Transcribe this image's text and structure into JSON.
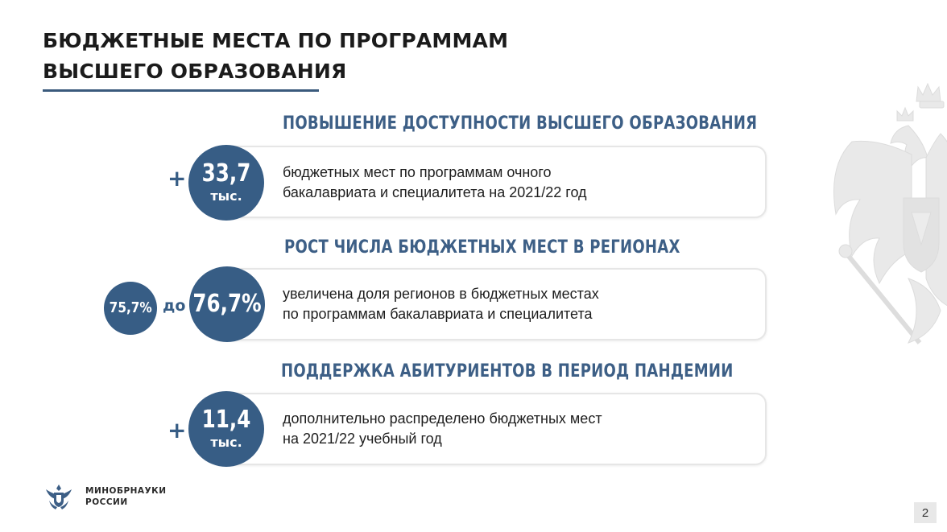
{
  "header": {
    "title_line1": "БЮДЖЕТНЫЕ МЕСТА ПО ПРОГРАММАМ",
    "title_line2": "ВЫСШЕГО ОБРАЗОВАНИЯ"
  },
  "sections": [
    {
      "heading": "ПОВЫШЕНИЕ ДОСТУПНОСТИ ВЫСШЕГО ОБРАЗОВАНИЯ",
      "prefix": "+",
      "value": "33,7",
      "unit": "тыс.",
      "text_line1": "бюджетных мест по программам очного",
      "text_line2": "бакалавриата и специалитета на 2021/22 год"
    },
    {
      "heading": "РОСТ ЧИСЛА БЮДЖЕТНЫХ МЕСТ В РЕГИОНАХ",
      "from_value": "75,7%",
      "connector": "до",
      "value": "76,7%",
      "text_line1": "увеличена доля регионов в бюджетных местах",
      "text_line2": "по программам бакалавриата и специалитета"
    },
    {
      "heading": "ПОДДЕРЖКА АБИТУРИЕНТОВ В ПЕРИОД ПАНДЕМИИ",
      "prefix": "+",
      "value": "11,4",
      "unit": "тыс.",
      "text_line1": "дополнительно распределено бюджетных мест",
      "text_line2": "на 2021/22 учебный год"
    }
  ],
  "footer": {
    "org_line1": "МИНОБРНАУКИ",
    "org_line2": "РОССИИ",
    "page_number": "2"
  },
  "colors": {
    "accent": "#375d85",
    "heading": "#3d5f86",
    "card_border": "#e6e6e6"
  },
  "icons": {
    "emblem": "double-headed-eagle-emblem-icon",
    "logo": "ministry-logo-icon"
  }
}
